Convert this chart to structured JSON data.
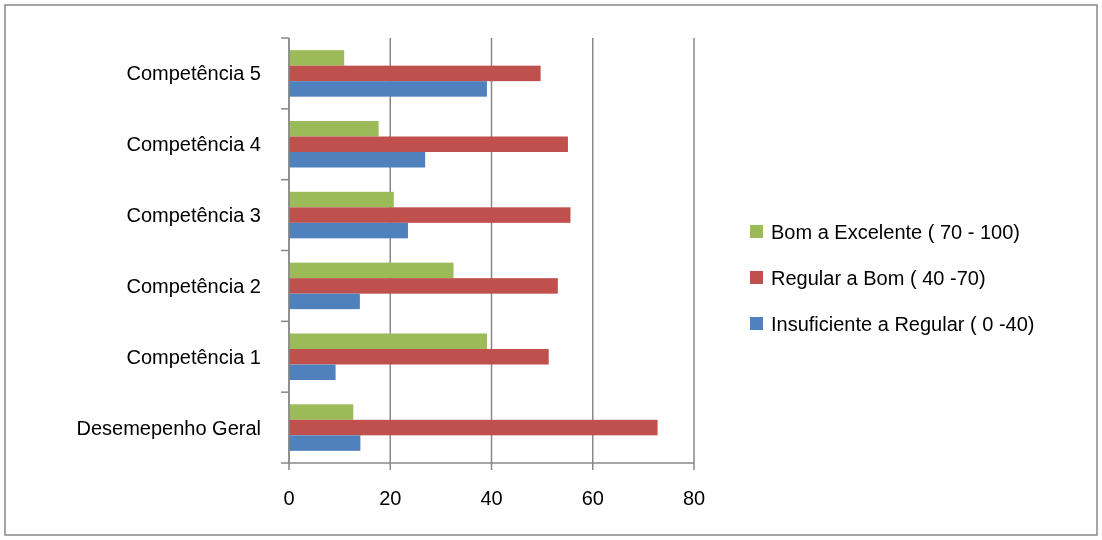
{
  "chart_data": {
    "type": "bar",
    "orientation": "horizontal",
    "categories": [
      "Competência 5",
      "Competência 4",
      "Competência 3",
      "Competência 2",
      "Competência 1",
      "Desemepenho Geral"
    ],
    "series": [
      {
        "name": "Bom a Excelente ( 70 - 100)",
        "color": "#9bbb59",
        "values": [
          10.9,
          17.7,
          20.7,
          32.5,
          39.1,
          12.7
        ]
      },
      {
        "name": "Regular a Bom ( 40 -70)",
        "color": "#c0504d",
        "values": [
          49.7,
          55.1,
          55.6,
          53.1,
          51.3,
          72.8
        ]
      },
      {
        "name": "Insuficiente a Regular ( 0 -40)",
        "color": "#4f81bd",
        "values": [
          39.1,
          26.9,
          23.5,
          14.0,
          9.2,
          14.1
        ]
      }
    ],
    "xlim": [
      0,
      80
    ],
    "xticks": [
      0,
      20,
      40,
      60,
      80
    ],
    "grid": "x",
    "legend": "right"
  }
}
